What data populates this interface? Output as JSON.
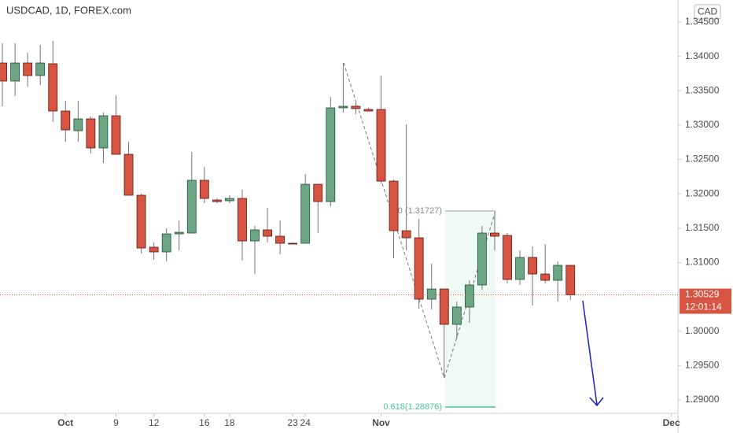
{
  "chart_data": {
    "type": "candlestick",
    "title": "USDCAD, 1D, FOREX.com",
    "currency": "CAD",
    "series": [
      {
        "up_color": "#6ba583",
        "down_color": "#d75442",
        "open": [
          1.33904,
          1.33641,
          1.33904,
          1.33721,
          1.33893,
          1.33205,
          1.32919,
          1.33091,
          1.32667,
          1.33136,
          1.32575,
          1.31979,
          1.31223,
          1.31154,
          1.31417,
          1.31429,
          1.32197,
          1.3191,
          1.31899,
          1.31933,
          1.31314,
          1.31475,
          1.31383,
          1.3128,
          1.3128,
          1.32139,
          1.31887,
          1.33251,
          1.33274,
          1.33228,
          1.33228,
          1.32185,
          1.31463,
          1.3136,
          1.30466,
          1.30615,
          1.301,
          1.30352,
          1.30673,
          1.31429,
          1.31394,
          1.30753,
          1.31074,
          1.30833,
          1.30741,
          1.30959
        ],
        "high": [
          1.34191,
          1.34191,
          1.34053,
          1.34168,
          1.34225,
          1.33354,
          1.33354,
          1.33125,
          1.33182,
          1.33434,
          1.32758,
          1.32002,
          1.31291,
          1.31498,
          1.31612,
          1.32609,
          1.32391,
          1.31933,
          1.31979,
          1.32059,
          1.31532,
          1.31796,
          1.31612,
          1.31291,
          1.32288,
          1.32139,
          1.33411,
          1.33904,
          1.33331,
          1.33251,
          1.33721,
          1.32208,
          1.3301,
          1.31635,
          1.30982,
          1.30615,
          1.30432,
          1.30741,
          1.31532,
          1.31727,
          1.31429,
          1.31177,
          1.31234,
          1.31269,
          1.31016,
          1.30959
        ],
        "low": [
          1.33274,
          1.33423,
          1.3356,
          1.33583,
          1.33045,
          1.32758,
          1.32758,
          1.32586,
          1.32449,
          1.32575,
          1.31979,
          1.31131,
          1.31039,
          1.31016,
          1.31177,
          1.31429,
          1.31864,
          1.31864,
          1.31864,
          1.31028,
          1.30833,
          1.31291,
          1.31119,
          1.31269,
          1.3128,
          1.31429,
          1.31819,
          1.33182,
          1.33159,
          1.33205,
          1.32151,
          1.31062,
          1.31177,
          1.30329,
          1.30317,
          1.2932,
          1.29893,
          1.30123,
          1.30604,
          1.31177,
          1.30696,
          1.30673,
          1.30375,
          1.30696,
          1.30432,
          1.30455
        ],
        "close": [
          1.33641,
          1.33904,
          1.33721,
          1.33904,
          1.33205,
          1.3293,
          1.33091,
          1.32667,
          1.33136,
          1.32575,
          1.31979,
          1.31211,
          1.31154,
          1.31417,
          1.3144,
          1.32197,
          1.31933,
          1.31887,
          1.31933,
          1.31314,
          1.31475,
          1.31383,
          1.3128,
          1.31269,
          1.32139,
          1.31887,
          1.33251,
          1.33274,
          1.3324,
          1.33205,
          1.32185,
          1.31463,
          1.3136,
          1.30466,
          1.30615,
          1.301,
          1.30352,
          1.30673,
          1.31429,
          1.31383,
          1.30753,
          1.31074,
          1.30833,
          1.30741,
          1.30959,
          1.30529
        ]
      }
    ],
    "xlim": [
      -0.19,
      53.52
    ],
    "xticks": [
      {
        "value": 5,
        "label": "Oct"
      },
      12,
      18,
      24,
      {
        "value": 30,
        "label": "Nov"
      },
      9,
      16,
      23,
      {
        "value": 53,
        "label": "Dec"
      }
    ],
    "ylim": [
      1.28805,
      1.34821
    ],
    "yticks": [
      {
        "value": 1.29,
        "label": "1.29000"
      },
      {
        "value": 1.295,
        "label": "1.29500"
      },
      {
        "value": 1.3,
        "label": "1.30000"
      },
      {
        "value": 1.31,
        "label": "1.31000"
      },
      {
        "value": 1.315,
        "label": "1.31500"
      },
      {
        "value": 1.32,
        "label": "1.32000"
      },
      {
        "value": 1.325,
        "label": "1.32500"
      },
      {
        "value": 1.33,
        "label": "1.33000"
      },
      {
        "value": 1.335,
        "label": "1.33500"
      },
      {
        "value": 1.34,
        "label": "1.34000"
      },
      {
        "value": 1.345,
        "label": "1.34500"
      }
    ],
    "last_price": 1.30529,
    "countdown": "12:01:14",
    "annotations": [
      "0 (1.31727)",
      "0.618(1.28876)"
    ]
  }
}
